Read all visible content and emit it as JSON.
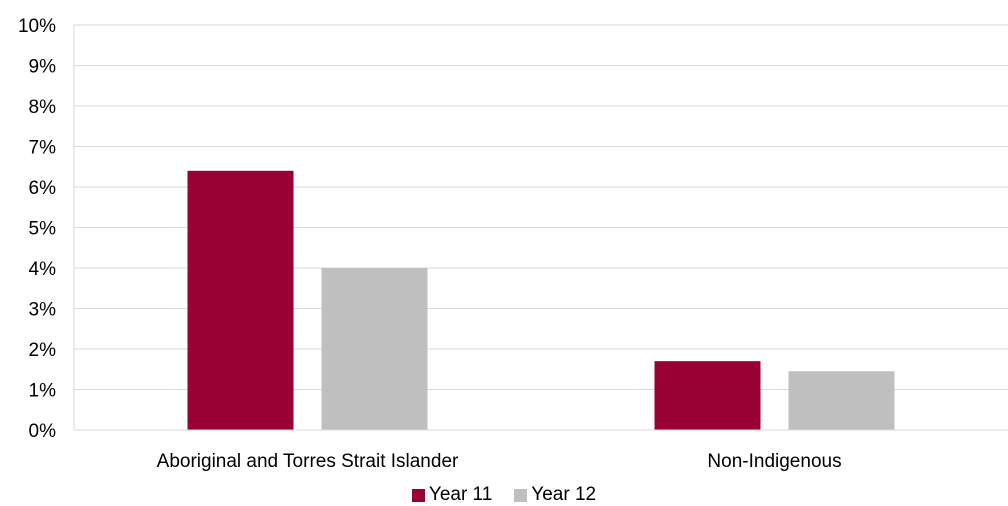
{
  "chart_data": {
    "type": "bar",
    "categories": [
      "Aboriginal and Torres Strait Islander",
      "Non-Indigenous"
    ],
    "series": [
      {
        "name": "Year 11",
        "values": [
          6.4,
          1.7
        ],
        "color": "#990033"
      },
      {
        "name": "Year 12",
        "values": [
          4.0,
          1.45
        ],
        "color": "#BFBFBF"
      }
    ],
    "yticks": [
      "0%",
      "1%",
      "2%",
      "3%",
      "4%",
      "5%",
      "6%",
      "7%",
      "8%",
      "9%",
      "10%"
    ],
    "ylim": [
      0,
      10
    ],
    "grid": true,
    "legend": "bottom-center"
  }
}
